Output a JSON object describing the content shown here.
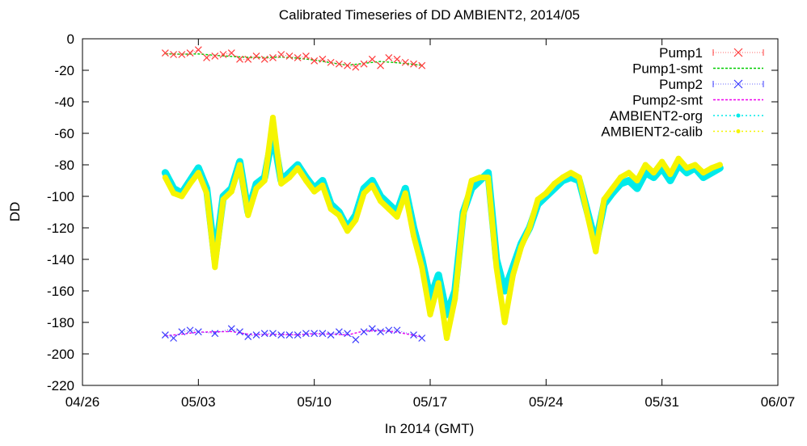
{
  "chart_data": {
    "type": "scatter",
    "title": "Calibrated Timeseries of DD AMBIENT2, 2014/05",
    "xlabel": "In 2014 (GMT)",
    "ylabel": "DD",
    "xlim": [
      "2014-04-26",
      "2014-06-07"
    ],
    "ylim": [
      -220,
      0
    ],
    "x_tick_labels": [
      "04/26",
      "05/03",
      "05/10",
      "05/17",
      "05/24",
      "05/31",
      "06/07"
    ],
    "y_ticks": [
      0,
      -20,
      -40,
      -60,
      -80,
      -100,
      -120,
      -140,
      -160,
      -180,
      -200,
      -220
    ],
    "grid": false,
    "legend_position": "top-right",
    "series": [
      {
        "name": "Pump1",
        "color": "#ff3a3a",
        "marker": "x",
        "x": [
          "2014-05-01",
          "2014-05-01 12:00",
          "2014-05-02",
          "2014-05-02 12:00",
          "2014-05-03",
          "2014-05-03 12:00",
          "2014-05-04",
          "2014-05-04 12:00",
          "2014-05-05",
          "2014-05-05 12:00",
          "2014-05-06",
          "2014-05-06 12:00",
          "2014-05-07",
          "2014-05-07 12:00",
          "2014-05-08",
          "2014-05-08 12:00",
          "2014-05-09",
          "2014-05-09 12:00",
          "2014-05-10",
          "2014-05-10 12:00",
          "2014-05-11",
          "2014-05-11 12:00",
          "2014-05-12",
          "2014-05-12 12:00",
          "2014-05-13",
          "2014-05-13 12:00",
          "2014-05-14",
          "2014-05-14 12:00",
          "2014-05-15",
          "2014-05-15 12:00",
          "2014-05-16",
          "2014-05-16 12:00"
        ],
        "values": [
          -9,
          -10,
          -10,
          -9,
          -7,
          -12,
          -11,
          -10,
          -9,
          -13,
          -13,
          -11,
          -13,
          -12,
          -10,
          -11,
          -12,
          -11,
          -14,
          -13,
          -15,
          -16,
          -17,
          -18,
          -16,
          -13,
          -17,
          -12,
          -13,
          -15,
          -16,
          -17
        ]
      },
      {
        "name": "Pump1-smt",
        "color": "#00cc00",
        "marker": "line",
        "x": [
          "2014-05-01",
          "2014-05-02",
          "2014-05-03",
          "2014-05-04",
          "2014-05-05",
          "2014-05-06",
          "2014-05-07",
          "2014-05-08",
          "2014-05-09",
          "2014-05-10",
          "2014-05-11",
          "2014-05-12",
          "2014-05-13",
          "2014-05-14",
          "2014-05-15",
          "2014-05-16 12:00"
        ],
        "values": [
          -9.5,
          -9.8,
          -9.6,
          -10.5,
          -11.2,
          -11.8,
          -11.9,
          -11.6,
          -12.3,
          -13.5,
          -15.2,
          -16.8,
          -15.6,
          -14.4,
          -15.2,
          -16.8
        ]
      },
      {
        "name": "Pump2",
        "color": "#3a3aff",
        "marker": "x",
        "x": [
          "2014-05-01",
          "2014-05-01 12:00",
          "2014-05-02",
          "2014-05-02 12:00",
          "2014-05-03",
          "2014-05-04",
          "2014-05-05",
          "2014-05-05 12:00",
          "2014-05-06",
          "2014-05-06 12:00",
          "2014-05-07",
          "2014-05-07 12:00",
          "2014-05-08",
          "2014-05-08 12:00",
          "2014-05-09",
          "2014-05-09 12:00",
          "2014-05-10",
          "2014-05-10 12:00",
          "2014-05-11",
          "2014-05-11 12:00",
          "2014-05-12",
          "2014-05-12 12:00",
          "2014-05-13",
          "2014-05-13 12:00",
          "2014-05-14",
          "2014-05-14 12:00",
          "2014-05-15",
          "2014-05-16",
          "2014-05-16 12:00"
        ],
        "values": [
          -188,
          -190,
          -186,
          -185,
          -186,
          -187,
          -184,
          -186,
          -189,
          -188,
          -187,
          -187,
          -188,
          -188,
          -188,
          -187,
          -187,
          -187,
          -188,
          -186,
          -187,
          -191,
          -186,
          -184,
          -186,
          -185,
          -185,
          -188,
          -190
        ]
      },
      {
        "name": "Pump2-smt",
        "color": "#ee00ee",
        "marker": "line",
        "x": [
          "2014-05-01",
          "2014-05-02",
          "2014-05-03",
          "2014-05-04",
          "2014-05-05",
          "2014-05-06",
          "2014-05-07",
          "2014-05-08",
          "2014-05-09",
          "2014-05-10",
          "2014-05-11",
          "2014-05-12",
          "2014-05-13",
          "2014-05-14",
          "2014-05-15",
          "2014-05-16 12:00"
        ],
        "values": [
          -188.5,
          -187.5,
          -186.2,
          -186,
          -185.8,
          -187.5,
          -187.8,
          -187.6,
          -187.9,
          -187.2,
          -187.4,
          -188,
          -185.5,
          -185.2,
          -186.2,
          -189.2
        ]
      },
      {
        "name": "AMBIENT2-org",
        "color": "#00eaea",
        "marker": "dot",
        "x": [
          "2014-05-01",
          "2014-05-01 12:00",
          "2014-05-02",
          "2014-05-02 12:00",
          "2014-05-03",
          "2014-05-03 12:00",
          "2014-05-04",
          "2014-05-04 12:00",
          "2014-05-05",
          "2014-05-05 12:00",
          "2014-05-06",
          "2014-05-06 12:00",
          "2014-05-07",
          "2014-05-07 12:00",
          "2014-05-08",
          "2014-05-08 12:00",
          "2014-05-09",
          "2014-05-09 12:00",
          "2014-05-10",
          "2014-05-10 12:00",
          "2014-05-11",
          "2014-05-11 12:00",
          "2014-05-12",
          "2014-05-12 12:00",
          "2014-05-13",
          "2014-05-13 12:00",
          "2014-05-14",
          "2014-05-14 12:00",
          "2014-05-15",
          "2014-05-15 12:00",
          "2014-05-16",
          "2014-05-16 12:00",
          "2014-05-17",
          "2014-05-17 12:00",
          "2014-05-18",
          "2014-05-18 12:00",
          "2014-05-19",
          "2014-05-19 12:00",
          "2014-05-20",
          "2014-05-20 12:00",
          "2014-05-21",
          "2014-05-21 12:00",
          "2014-05-22",
          "2014-05-22 12:00",
          "2014-05-23",
          "2014-05-23 12:00",
          "2014-05-24",
          "2014-05-24 12:00",
          "2014-05-25",
          "2014-05-25 12:00",
          "2014-05-26",
          "2014-05-26 12:00",
          "2014-05-27",
          "2014-05-27 12:00",
          "2014-05-28",
          "2014-05-28 12:00",
          "2014-05-29",
          "2014-05-29 12:00",
          "2014-05-30",
          "2014-05-30 12:00",
          "2014-05-31",
          "2014-05-31 12:00",
          "2014-06-01",
          "2014-06-01 12:00",
          "2014-06-02",
          "2014-06-02 12:00",
          "2014-06-03",
          "2014-06-03 12:00"
        ],
        "values": [
          -85,
          -95,
          -98,
          -90,
          -82,
          -95,
          -140,
          -100,
          -95,
          -78,
          -110,
          -92,
          -88,
          -60,
          -90,
          -85,
          -80,
          -88,
          -95,
          -90,
          -105,
          -110,
          -120,
          -112,
          -95,
          -90,
          -100,
          -105,
          -110,
          -95,
          -120,
          -140,
          -165,
          -150,
          -175,
          -160,
          -110,
          -95,
          -90,
          -85,
          -140,
          -160,
          -145,
          -130,
          -120,
          -105,
          -100,
          -95,
          -90,
          -88,
          -90,
          -110,
          -130,
          -105,
          -98,
          -92,
          -90,
          -95,
          -85,
          -88,
          -82,
          -90,
          -80,
          -85,
          -82,
          -88,
          -85,
          -82
        ]
      },
      {
        "name": "AMBIENT2-calib",
        "color": "#f5f500",
        "marker": "dot",
        "x": [
          "2014-05-01",
          "2014-05-01 12:00",
          "2014-05-02",
          "2014-05-02 12:00",
          "2014-05-03",
          "2014-05-03 12:00",
          "2014-05-04",
          "2014-05-04 12:00",
          "2014-05-05",
          "2014-05-05 12:00",
          "2014-05-06",
          "2014-05-06 12:00",
          "2014-05-07",
          "2014-05-07 12:00",
          "2014-05-08",
          "2014-05-08 12:00",
          "2014-05-09",
          "2014-05-09 12:00",
          "2014-05-10",
          "2014-05-10 12:00",
          "2014-05-11",
          "2014-05-11 12:00",
          "2014-05-12",
          "2014-05-12 12:00",
          "2014-05-13",
          "2014-05-13 12:00",
          "2014-05-14",
          "2014-05-14 12:00",
          "2014-05-15",
          "2014-05-15 12:00",
          "2014-05-16",
          "2014-05-16 12:00",
          "2014-05-17",
          "2014-05-17 12:00",
          "2014-05-18",
          "2014-05-18 12:00",
          "2014-05-19",
          "2014-05-19 12:00",
          "2014-05-20",
          "2014-05-20 12:00",
          "2014-05-21",
          "2014-05-21 12:00",
          "2014-05-22",
          "2014-05-22 12:00",
          "2014-05-23",
          "2014-05-23 12:00",
          "2014-05-24",
          "2014-05-24 12:00",
          "2014-05-25",
          "2014-05-25 12:00",
          "2014-05-26",
          "2014-05-26 12:00",
          "2014-05-27",
          "2014-05-27 12:00",
          "2014-05-28",
          "2014-05-28 12:00",
          "2014-05-29",
          "2014-05-29 12:00",
          "2014-05-30",
          "2014-05-30 12:00",
          "2014-05-31",
          "2014-05-31 12:00",
          "2014-06-01",
          "2014-06-01 12:00",
          "2014-06-02",
          "2014-06-02 12:00",
          "2014-06-03",
          "2014-06-03 12:00"
        ],
        "values": [
          -88,
          -98,
          -100,
          -92,
          -85,
          -98,
          -145,
          -102,
          -97,
          -80,
          -112,
          -95,
          -90,
          -50,
          -92,
          -88,
          -82,
          -90,
          -97,
          -93,
          -108,
          -112,
          -122,
          -115,
          -98,
          -93,
          -103,
          -108,
          -113,
          -98,
          -125,
          -145,
          -175,
          -155,
          -190,
          -165,
          -112,
          -90,
          -88,
          -88,
          -145,
          -180,
          -150,
          -132,
          -120,
          -102,
          -98,
          -92,
          -88,
          -85,
          -88,
          -112,
          -135,
          -102,
          -95,
          -88,
          -85,
          -90,
          -80,
          -85,
          -78,
          -86,
          -76,
          -82,
          -80,
          -85,
          -82,
          -80
        ]
      }
    ]
  }
}
